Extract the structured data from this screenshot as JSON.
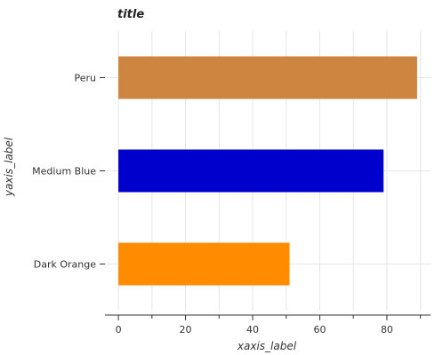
{
  "chart_data": {
    "type": "bar",
    "orientation": "horizontal",
    "title": "title",
    "xlabel": "xaxis_label",
    "ylabel": "yaxis_label",
    "categories": [
      "Dark Orange",
      "Medium Blue",
      "Peru"
    ],
    "values": [
      51,
      79,
      89
    ],
    "colors": [
      "#ff8c00",
      "#0000cd",
      "#cd853f"
    ],
    "xlim": [
      -4,
      93
    ],
    "xticks": [
      0,
      20,
      40,
      60,
      80
    ],
    "xtick_labels": [
      "0",
      "20",
      "40",
      "60",
      "80"
    ],
    "grid": true,
    "grid_color": "#e5e5e5"
  }
}
